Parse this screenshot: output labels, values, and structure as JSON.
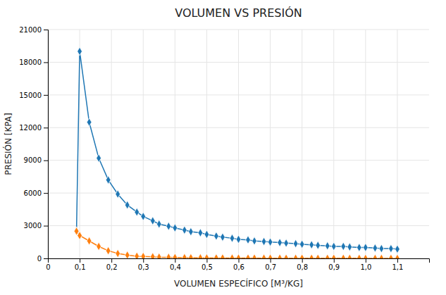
{
  "chart_data": {
    "type": "line",
    "title": "VOLUMEN VS PRESIÓN",
    "x_label": "VOLUMEN ESPECÍFICO [M³/KG]",
    "y_label": "PRESIÓN [KPA]",
    "x": [
      0.09,
      0.1,
      0.13,
      0.16,
      0.19,
      0.22,
      0.25,
      0.28,
      0.3,
      0.33,
      0.35,
      0.38,
      0.4,
      0.43,
      0.45,
      0.48,
      0.5,
      0.53,
      0.55,
      0.58,
      0.6,
      0.63,
      0.65,
      0.68,
      0.7,
      0.73,
      0.75,
      0.78,
      0.8,
      0.83,
      0.85,
      0.88,
      0.9,
      0.93,
      0.95,
      0.98,
      1.0,
      1.03,
      1.05,
      1.08,
      1.1
    ],
    "series": [
      {
        "values": [
          2500,
          19000,
          12500,
          9200,
          7200,
          5900,
          4900,
          4250,
          3850,
          3450,
          3150,
          2950,
          2800,
          2600,
          2450,
          2350,
          2200,
          2050,
          1950,
          1850,
          1750,
          1700,
          1600,
          1550,
          1500,
          1450,
          1400,
          1350,
          1300,
          1250,
          1200,
          1150,
          1100,
          1100,
          1050,
          1000,
          1000,
          950,
          900,
          900,
          850
        ]
      },
      {
        "values": [
          2500,
          2100,
          1600,
          1100,
          700,
          450,
          300,
          200,
          180,
          150,
          120,
          100,
          80,
          70,
          60,
          50,
          45,
          40,
          35,
          30,
          30,
          25,
          25,
          20,
          20,
          20,
          15,
          15,
          15,
          15,
          10,
          10,
          10,
          10,
          10,
          10,
          5,
          5,
          5,
          5,
          5
        ]
      }
    ],
    "marker": "diamond",
    "xlim": [
      0,
      1.2
    ],
    "ylim": [
      0,
      21000
    ],
    "xticks": [
      0,
      {
        "value": 0.1,
        "label": "0,1"
      },
      {
        "value": 0.2,
        "label": "0,2"
      },
      {
        "value": 0.3,
        "label": "0,3"
      },
      {
        "value": 0.4,
        "label": "0,4"
      },
      {
        "value": 0.5,
        "label": "0,5"
      },
      {
        "value": 0.6,
        "label": "0,6"
      },
      {
        "value": 0.7,
        "label": "0,7"
      },
      {
        "value": 0.8,
        "label": "0,8"
      },
      {
        "value": 0.9,
        "label": "0,9"
      },
      {
        "value": 1.0,
        "label": "1,0"
      },
      {
        "value": 1.1,
        "label": "1,1"
      }
    ],
    "yticks": [
      0,
      3000,
      6000,
      9000,
      12000,
      15000,
      18000,
      21000
    ],
    "grid": true
  }
}
